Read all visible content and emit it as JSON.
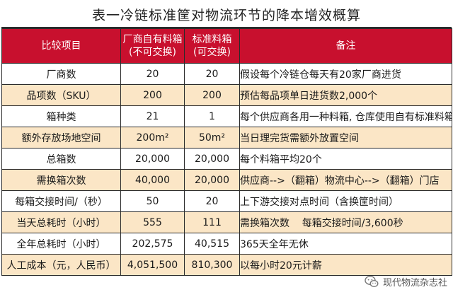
{
  "title": "表一冷链标准筐对物流环节的降本增效概算",
  "header": {
    "item": "比较项目",
    "col_a_line1": "厂商自有料箱",
    "col_a_line2": "(不可交换)",
    "col_b_line1": "标准料箱",
    "col_b_line2": "(可交换)",
    "note": "备注"
  },
  "rows": [
    {
      "item": "厂商数",
      "a": "20",
      "b": "20",
      "note": "假设每个冷链仓每天有20家厂商进货"
    },
    {
      "item": "品项数（SKU）",
      "a": "200",
      "b": "200",
      "note": "预估每品项单日进货数2,000个"
    },
    {
      "item": "箱种类",
      "a": "21",
      "b": "1",
      "note": "每个供应商各用一种料箱, 仓库使用自有标准料箱"
    },
    {
      "item": "额外存放场地空间",
      "a": "200m²",
      "b": "50m²",
      "note": "当日理完货需额外放置空间"
    },
    {
      "item": "总箱数",
      "a": "20,000",
      "b": "20,000",
      "note": "每个料箱平均20个"
    },
    {
      "item": "需换箱次数",
      "a": "40,000",
      "b": "20,000",
      "note": "供应商-->（翻箱）物流中心-->（翻箱）门店"
    },
    {
      "item": "每箱交接时间/（秒）",
      "a": "50",
      "b": "20",
      "note": "上下游交接对点时间（含换筐时间）"
    },
    {
      "item": "当天总耗时（小时）",
      "a": "555",
      "b": "111",
      "note": "需换箱次数    每箱交接时间/3,600秒"
    },
    {
      "item": "全年总耗时（小时）",
      "a": "202,575",
      "b": "40,515",
      "note": "365天全年无休"
    },
    {
      "item": "人工成本（元，人民币）",
      "a": "4,051,500",
      "b": "810,300",
      "note": "以每小时20元计薪"
    }
  ],
  "watermark": {
    "text": "现代物流杂志社",
    "icon": "wechat-icon"
  },
  "colors": {
    "header_bg": "#c8102e",
    "row_alt_bg": "#fbe6c6",
    "border": "#2b2b2b"
  }
}
